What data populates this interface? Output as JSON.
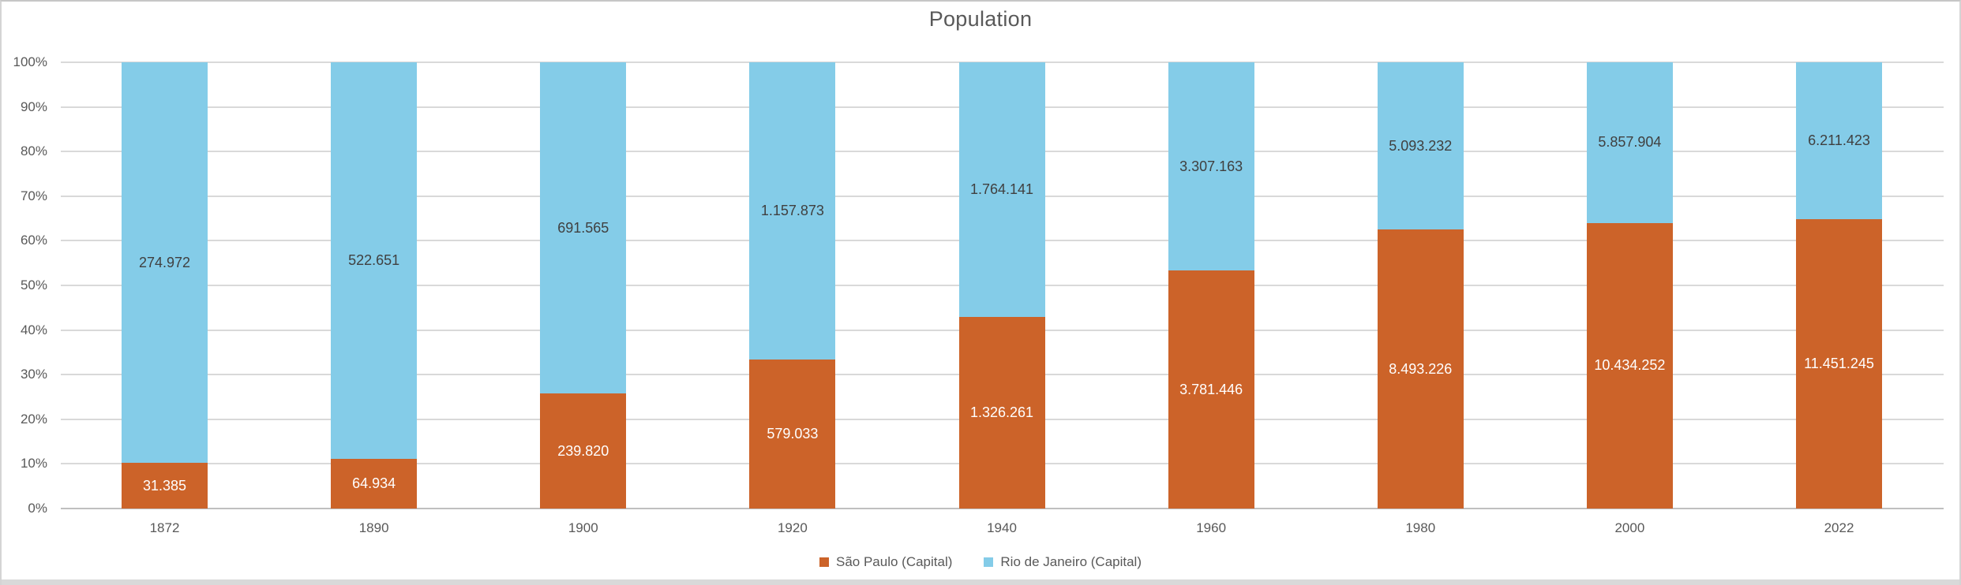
{
  "chart_data": {
    "type": "bar",
    "subtype": "stacked-100-percent",
    "title": "Population",
    "categories": [
      "1872",
      "1890",
      "1900",
      "1920",
      "1940",
      "1960",
      "1980",
      "2000",
      "2022"
    ],
    "series": [
      {
        "name": "São Paulo (Capital)",
        "color": "#cc6329",
        "label_color": "#ffffff",
        "values": [
          31385,
          64934,
          239820,
          579033,
          1326261,
          3781446,
          8493226,
          10434252,
          11451245
        ],
        "labels": [
          "31.385",
          "64.934",
          "239.820",
          "579.033",
          "1.326.261",
          "3.781.446",
          "8.493.226",
          "10.434.252",
          "11.451.245"
        ]
      },
      {
        "name": "Rio de Janeiro (Capital)",
        "color": "#84cce8",
        "label_color": "#404040",
        "values": [
          274972,
          522651,
          691565,
          1157873,
          1764141,
          3307163,
          5093232,
          5857904,
          6211423
        ],
        "labels": [
          "274.972",
          "522.651",
          "691.565",
          "1.157.873",
          "1.764.141",
          "3.307.163",
          "5.093.232",
          "5.857.904",
          "6.211.423"
        ]
      }
    ],
    "y_ticks": [
      "0%",
      "10%",
      "20%",
      "30%",
      "40%",
      "50%",
      "60%",
      "70%",
      "80%",
      "90%",
      "100%"
    ],
    "ylim": [
      0,
      100
    ],
    "grid": true,
    "legend_position": "bottom",
    "colors": {
      "title_text": "#595959",
      "axis_text": "#595959",
      "gridline": "#d9d9d9",
      "axis_line": "#bfbfbf",
      "frame_border": "#c6c6c6",
      "bottom_strip": "#d9d9d9"
    }
  }
}
